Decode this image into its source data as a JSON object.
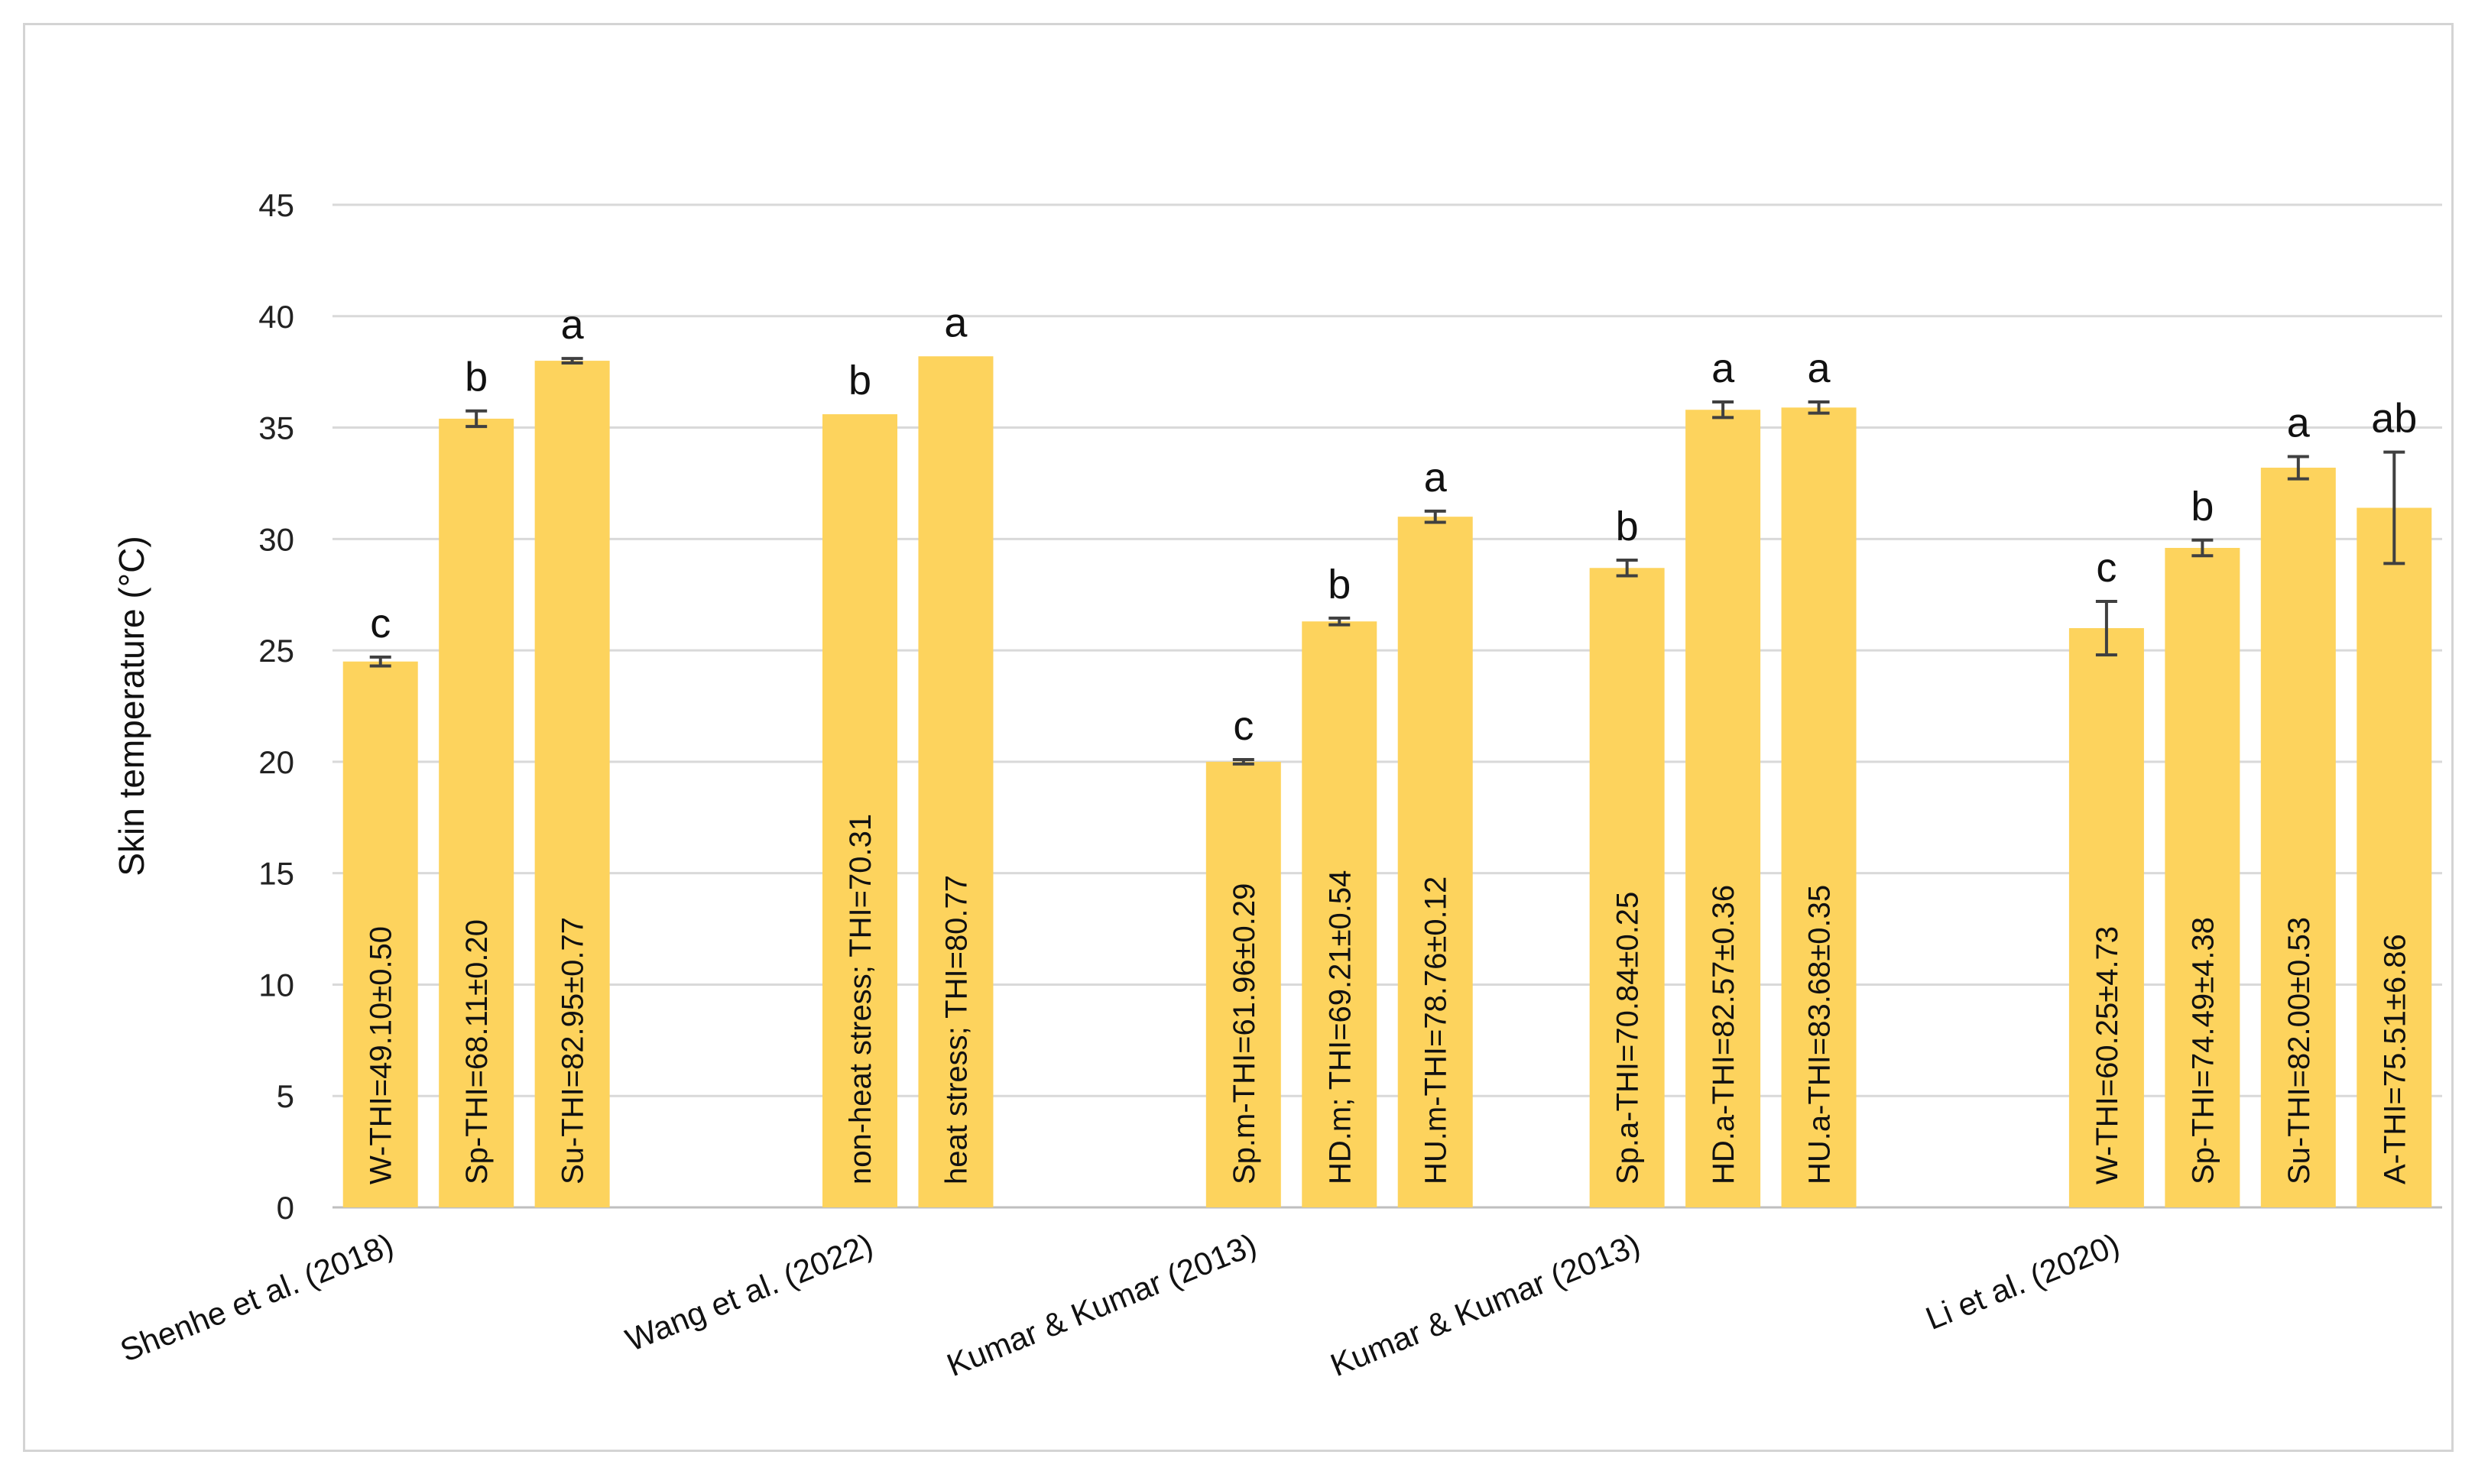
{
  "chart_data": {
    "type": "bar",
    "ylabel": "Skin temperature (°C)",
    "ylim": [
      0,
      45
    ],
    "yticks": [
      0,
      5,
      10,
      15,
      20,
      25,
      30,
      35,
      40,
      45
    ],
    "grid": true,
    "bar_color": "#fdd35d",
    "error_color": "#404040",
    "groups": [
      {
        "name": "Shenhe et al. (2018)",
        "bars": [
          {
            "label": "W-THI=49.10±0.50",
            "value": 24.5,
            "error": 0.2,
            "letter": "c"
          },
          {
            "label": "Sp-THI=68.11±0.20",
            "value": 35.4,
            "error": 0.35,
            "letter": "b"
          },
          {
            "label": "Su-THI=82.95±0.77",
            "value": 38.0,
            "error": 0.1,
            "letter": "a"
          }
        ]
      },
      {
        "name": "Wang et al. (2022)",
        "bars": [
          {
            "label": "non-heat stress; THI=70.31",
            "value": 35.6,
            "error": null,
            "letter": "b"
          },
          {
            "label": "heat stress; THI=80.77",
            "value": 38.2,
            "error": null,
            "letter": "a"
          }
        ]
      },
      {
        "name": "Kumar & Kumar (2013)",
        "bars": [
          {
            "label": "Sp.m-THI=61.96±0.29",
            "value": 20.0,
            "error": 0.1,
            "letter": "c"
          },
          {
            "label": "HD.m; THI=69.21±0.54",
            "value": 26.3,
            "error": 0.15,
            "letter": "b"
          },
          {
            "label": "HU.m-THI=78.76±0.12",
            "value": 31.0,
            "error": 0.25,
            "letter": "a"
          }
        ]
      },
      {
        "name": "Kumar & Kumar (2013)",
        "bars": [
          {
            "label": "Sp.a-THI=70.84±0.25",
            "value": 28.7,
            "error": 0.35,
            "letter": "b"
          },
          {
            "label": "HD.a-THI=82.57±0.36",
            "value": 35.8,
            "error": 0.35,
            "letter": "a"
          },
          {
            "label": "HU.a-THI=83.68±0.35",
            "value": 35.9,
            "error": 0.25,
            "letter": "a"
          }
        ]
      },
      {
        "name": "Li et al. (2020)",
        "bars": [
          {
            "label": "W-THI=60.25±4.73",
            "value": 26.0,
            "error": 1.2,
            "letter": "c"
          },
          {
            "label": "Sp-THI=74.49±4.38",
            "value": 29.6,
            "error": 0.35,
            "letter": "b"
          },
          {
            "label": "Su-THI=82.00±0.53",
            "value": 33.2,
            "error": 0.5,
            "letter": "a"
          },
          {
            "label": "A-THI=75.51±6.86",
            "value": 31.4,
            "error": 2.5,
            "letter": "ab"
          }
        ]
      }
    ]
  }
}
